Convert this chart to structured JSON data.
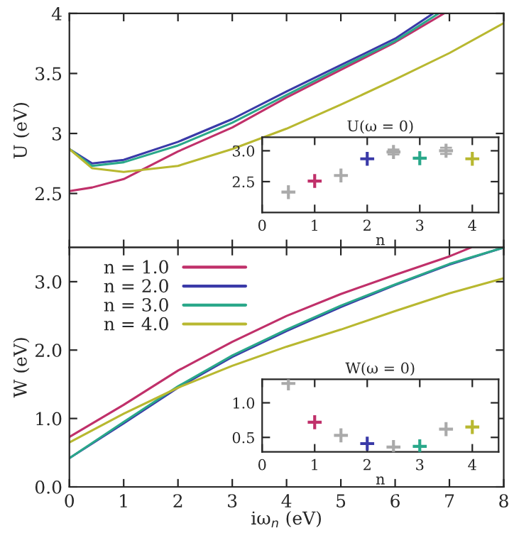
{
  "chart_data": [
    {
      "type": "line",
      "ylabel": "U (eV)",
      "xlim": [
        0,
        8
      ],
      "ylim": [
        2.05,
        4
      ],
      "xticks": [
        0,
        1,
        2,
        3,
        4,
        5,
        6,
        7,
        8
      ],
      "yticks": [
        2.5,
        3,
        3.5,
        4
      ],
      "tick_labels": "y",
      "grid": false,
      "legend": false,
      "marker": "none",
      "line_style": "solid",
      "series": [
        {
          "color": "#c0306a",
          "x": [
            0,
            0.42,
            1,
            2,
            3,
            4,
            5,
            6,
            6.9
          ],
          "values": [
            2.52,
            2.55,
            2.62,
            2.85,
            3.05,
            3.3,
            3.53,
            3.76,
            4.0
          ]
        },
        {
          "color": "#3a3aa8",
          "x": [
            0,
            0.42,
            1,
            2,
            3,
            4,
            5,
            6,
            6.7
          ],
          "values": [
            2.87,
            2.75,
            2.78,
            2.93,
            3.12,
            3.35,
            3.57,
            3.79,
            4.0
          ]
        },
        {
          "color": "#2aa88a",
          "x": [
            0,
            0.42,
            1,
            2,
            3,
            4,
            5,
            6,
            6.8
          ],
          "values": [
            2.87,
            2.73,
            2.76,
            2.9,
            3.09,
            3.32,
            3.55,
            3.77,
            4.0
          ]
        },
        {
          "color": "#b8b830",
          "x": [
            0,
            0.42,
            1,
            2,
            3,
            4,
            5,
            6,
            7,
            8
          ],
          "values": [
            2.87,
            2.71,
            2.68,
            2.73,
            2.87,
            3.04,
            3.24,
            3.45,
            3.67,
            3.92
          ]
        }
      ]
    },
    {
      "type": "scatter",
      "title": "U(ω = 0)",
      "xlabel": "n",
      "xlim": [
        0,
        4.5
      ],
      "ylim": [
        2.0,
        3.22
      ],
      "xticks": [
        0,
        1,
        2,
        3,
        4
      ],
      "yticks": [
        2.5,
        {
          "value": 3.0,
          "label": "3.0"
        }
      ],
      "grid": false,
      "legend": false,
      "marker": "cross",
      "series": [
        {
          "x": [
            0.5,
            1,
            1.5,
            2,
            2.5,
            3,
            3.5,
            4
          ],
          "values": [
            2.33,
            2.51,
            2.6,
            2.87,
            2.98,
            2.88,
            3.0,
            2.87
          ],
          "colors": [
            "#aaaaaa",
            "#c0306a",
            "#aaaaaa",
            "#3a3aa8",
            "#aaaaaa",
            "#2aa88a",
            "#aaaaaa",
            "#b8b830"
          ],
          "errors": [
            null,
            null,
            null,
            null,
            0.04,
            null,
            0.05,
            null
          ]
        }
      ]
    },
    {
      "type": "line",
      "xlabel": "iω$_{n}$ (eV)",
      "ylabel": "W (eV)",
      "xlim": [
        0,
        8
      ],
      "ylim": [
        0,
        3.5
      ],
      "xticks": [
        0,
        1,
        2,
        3,
        4,
        5,
        6,
        7,
        8
      ],
      "yticks": [
        {
          "value": 0,
          "label": "0.0"
        },
        {
          "value": 1,
          "label": "1.0"
        },
        {
          "value": 2,
          "label": "2.0"
        },
        {
          "value": 3,
          "label": "3.0"
        }
      ],
      "grid": false,
      "legend": "top left",
      "marker": "none",
      "line_style": "solid",
      "series": [
        {
          "name": "n = 1.0",
          "color": "#c0306a",
          "x": [
            0,
            1,
            2,
            3,
            4,
            5,
            6,
            7,
            7.4
          ],
          "values": [
            0.73,
            1.2,
            1.7,
            2.12,
            2.5,
            2.82,
            3.1,
            3.37,
            3.5
          ]
        },
        {
          "name": "n = 2.0",
          "color": "#3a3aa8",
          "x": [
            0,
            1,
            2,
            3,
            4,
            5,
            6,
            7,
            8
          ],
          "values": [
            0.42,
            0.93,
            1.45,
            1.9,
            2.28,
            2.63,
            2.95,
            3.25,
            3.5
          ]
        },
        {
          "name": "n = 3.0",
          "color": "#2aa88a",
          "x": [
            0,
            1,
            2,
            3,
            4,
            5,
            6,
            7,
            8
          ],
          "values": [
            0.42,
            0.95,
            1.47,
            1.92,
            2.3,
            2.65,
            2.96,
            3.26,
            3.5
          ]
        },
        {
          "name": "n = 4.0",
          "color": "#b8b830",
          "x": [
            0,
            1,
            2,
            3,
            4,
            5,
            6,
            7,
            8
          ],
          "values": [
            0.65,
            1.07,
            1.45,
            1.77,
            2.05,
            2.3,
            2.57,
            2.83,
            3.05
          ]
        }
      ]
    },
    {
      "type": "scatter",
      "title": "W(ω = 0)",
      "xlabel": "n",
      "xlim": [
        0,
        4.5
      ],
      "ylim": [
        0.29,
        1.34
      ],
      "xticks": [
        0,
        1,
        2,
        3,
        4
      ],
      "yticks": [
        0.5,
        {
          "value": 1.0,
          "label": "1.0"
        }
      ],
      "grid": false,
      "legend": false,
      "marker": "cross",
      "series": [
        {
          "x": [
            0.5,
            1,
            1.5,
            2,
            2.5,
            3,
            3.5,
            4
          ],
          "values": [
            1.28,
            0.72,
            0.53,
            0.41,
            0.36,
            0.37,
            0.62,
            0.65
          ],
          "colors": [
            "#aaaaaa",
            "#c0306a",
            "#aaaaaa",
            "#3a3aa8",
            "#aaaaaa",
            "#2aa88a",
            "#aaaaaa",
            "#b8b830"
          ]
        }
      ]
    }
  ]
}
